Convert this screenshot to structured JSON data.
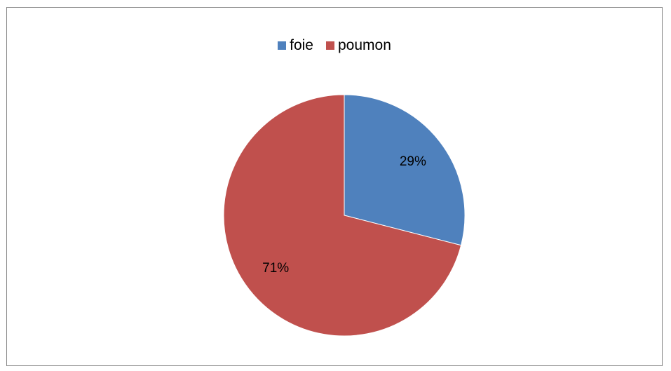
{
  "chart_data": {
    "type": "pie",
    "title": "",
    "categories": [
      "foie",
      "poumon"
    ],
    "values": [
      29,
      71
    ],
    "labels": [
      "29%",
      "71%"
    ],
    "colors": [
      "#4F81BD",
      "#C0504D"
    ],
    "legend_position": "top",
    "start_angle_deg": 0,
    "direction": "clockwise"
  }
}
